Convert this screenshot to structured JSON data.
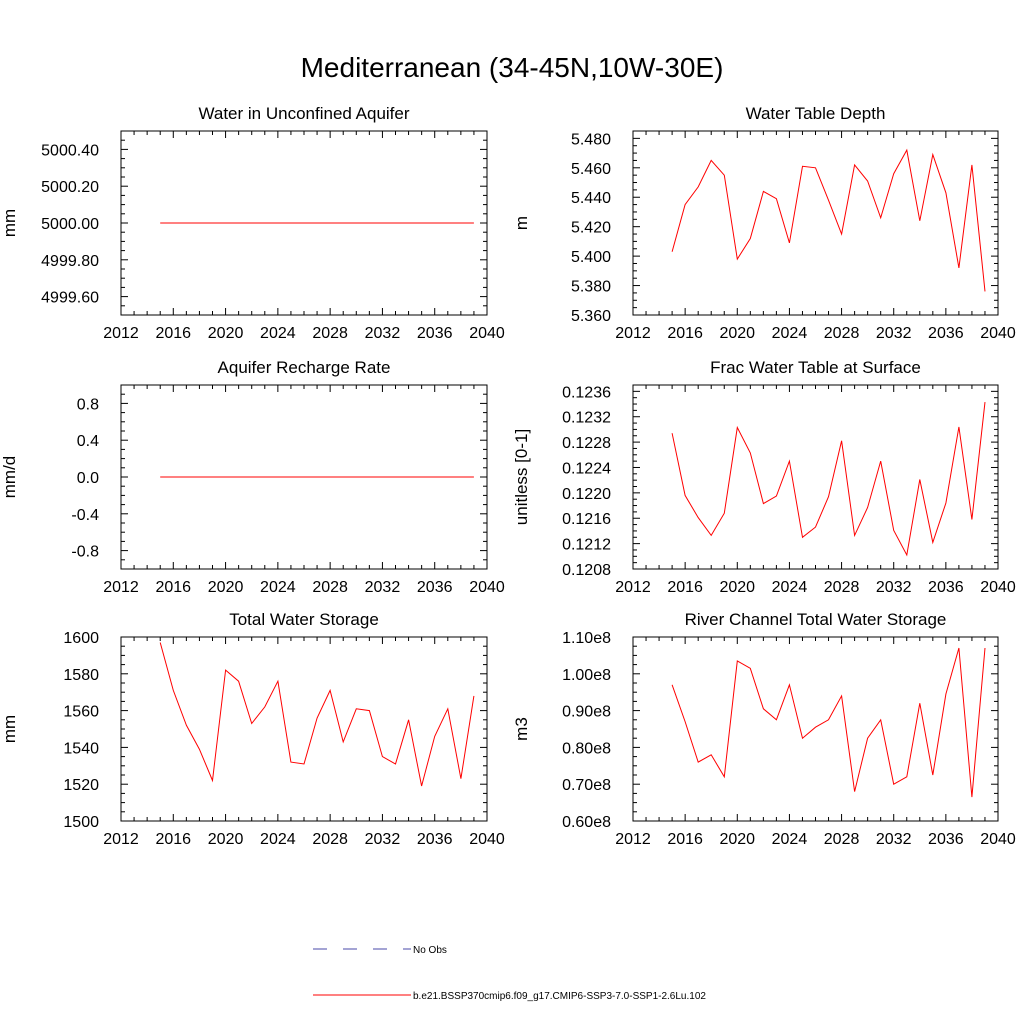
{
  "page": {
    "title": "Mediterranean (34-45N,10W-30E)"
  },
  "colors": {
    "model_line": "#ff0000",
    "obs_line": "#4a4aa8",
    "axis": "#000000"
  },
  "legend": {
    "entries": [
      {
        "label": "No Obs",
        "style": "dashed",
        "color": "#4a4aa8"
      },
      {
        "label": "b.e21.BSSP370cmip6.f09_g17.CMIP6-SSP3-7.0-SSP1-2.6Lu.102",
        "style": "solid",
        "color": "#ff0000"
      }
    ]
  },
  "chart_data": [
    {
      "type": "line",
      "title": "Water in Unconfined Aquifer",
      "xlabel": "",
      "ylabel": "mm",
      "xlim": [
        2012,
        2040
      ],
      "ylim": [
        4999.5,
        5000.5
      ],
      "xticks": [
        2012,
        2016,
        2020,
        2024,
        2028,
        2032,
        2036,
        2040
      ],
      "yticks": [
        4999.6,
        4999.8,
        5000.0,
        5000.2,
        5000.4
      ],
      "ytick_labels": [
        "4999.60",
        "4999.80",
        "5000.00",
        "5000.20",
        "5000.40"
      ],
      "series": [
        {
          "x": [
            2015,
            2016,
            2017,
            2018,
            2019,
            2020,
            2021,
            2022,
            2023,
            2024,
            2025,
            2026,
            2027,
            2028,
            2029,
            2030,
            2031,
            2032,
            2033,
            2034,
            2035,
            2036,
            2037,
            2038,
            2039
          ],
          "values": [
            5000,
            5000,
            5000,
            5000,
            5000,
            5000,
            5000,
            5000,
            5000,
            5000,
            5000,
            5000,
            5000,
            5000,
            5000,
            5000,
            5000,
            5000,
            5000,
            5000,
            5000,
            5000,
            5000,
            5000,
            5000
          ]
        }
      ]
    },
    {
      "type": "line",
      "title": "Water Table Depth",
      "xlabel": "",
      "ylabel": "m",
      "xlim": [
        2012,
        2040
      ],
      "ylim": [
        5.36,
        5.485
      ],
      "xticks": [
        2012,
        2016,
        2020,
        2024,
        2028,
        2032,
        2036,
        2040
      ],
      "yticks": [
        5.36,
        5.38,
        5.4,
        5.42,
        5.44,
        5.46,
        5.48
      ],
      "ytick_labels": [
        "5.360",
        "5.380",
        "5.400",
        "5.420",
        "5.440",
        "5.460",
        "5.480"
      ],
      "series": [
        {
          "x": [
            2015,
            2016,
            2017,
            2018,
            2019,
            2020,
            2021,
            2022,
            2023,
            2024,
            2025,
            2026,
            2027,
            2028,
            2029,
            2030,
            2031,
            2032,
            2033,
            2034,
            2035,
            2036,
            2037,
            2038,
            2039
          ],
          "values": [
            5.403,
            5.435,
            5.447,
            5.465,
            5.455,
            5.398,
            5.412,
            5.444,
            5.439,
            5.409,
            5.461,
            5.46,
            5.438,
            5.415,
            5.462,
            5.451,
            5.426,
            5.456,
            5.472,
            5.424,
            5.469,
            5.443,
            5.392,
            5.462,
            5.376
          ]
        }
      ]
    },
    {
      "type": "line",
      "title": "Aquifer Recharge Rate",
      "xlabel": "",
      "ylabel": "mm/d",
      "xlim": [
        2012,
        2040
      ],
      "ylim": [
        -1.0,
        1.0
      ],
      "xticks": [
        2012,
        2016,
        2020,
        2024,
        2028,
        2032,
        2036,
        2040
      ],
      "yticks": [
        -0.8,
        -0.4,
        0.0,
        0.4,
        0.8
      ],
      "ytick_labels": [
        "-0.8",
        "-0.4",
        "0.0",
        "0.4",
        "0.8"
      ],
      "series": [
        {
          "x": [
            2015,
            2016,
            2017,
            2018,
            2019,
            2020,
            2021,
            2022,
            2023,
            2024,
            2025,
            2026,
            2027,
            2028,
            2029,
            2030,
            2031,
            2032,
            2033,
            2034,
            2035,
            2036,
            2037,
            2038,
            2039
          ],
          "values": [
            0,
            0,
            0,
            0,
            0,
            0,
            0,
            0,
            0,
            0,
            0,
            0,
            0,
            0,
            0,
            0,
            0,
            0,
            0,
            0,
            0,
            0,
            0,
            0,
            0
          ]
        }
      ]
    },
    {
      "type": "line",
      "title": "Frac Water Table at Surface",
      "xlabel": "",
      "ylabel": "unitless [0-1]",
      "xlim": [
        2012,
        2040
      ],
      "ylim": [
        0.1208,
        0.1237
      ],
      "xticks": [
        2012,
        2016,
        2020,
        2024,
        2028,
        2032,
        2036,
        2040
      ],
      "yticks": [
        0.1208,
        0.1212,
        0.1216,
        0.122,
        0.1224,
        0.1228,
        0.1232,
        0.1236
      ],
      "ytick_labels": [
        "0.1208",
        "0.1212",
        "0.1216",
        "0.1220",
        "0.1224",
        "0.1228",
        "0.1232",
        "0.1236"
      ],
      "series": [
        {
          "x": [
            2015,
            2016,
            2017,
            2018,
            2019,
            2020,
            2021,
            2022,
            2023,
            2024,
            2025,
            2026,
            2027,
            2028,
            2029,
            2030,
            2031,
            2032,
            2033,
            2034,
            2035,
            2036,
            2037,
            2038,
            2039
          ],
          "values": [
            0.12294,
            0.12196,
            0.12161,
            0.12133,
            0.12168,
            0.12303,
            0.12263,
            0.12183,
            0.12195,
            0.1225,
            0.1213,
            0.12146,
            0.12194,
            0.12282,
            0.12133,
            0.12177,
            0.1225,
            0.12141,
            0.12102,
            0.12221,
            0.12122,
            0.12184,
            0.12304,
            0.12158,
            0.12343
          ]
        }
      ]
    },
    {
      "type": "line",
      "title": "Total Water Storage",
      "xlabel": "",
      "ylabel": "mm",
      "xlim": [
        2012,
        2040
      ],
      "ylim": [
        1500,
        1600
      ],
      "xticks": [
        2012,
        2016,
        2020,
        2024,
        2028,
        2032,
        2036,
        2040
      ],
      "yticks": [
        1500,
        1520,
        1540,
        1560,
        1580,
        1600
      ],
      "ytick_labels": [
        "1500",
        "1520",
        "1540",
        "1560",
        "1580",
        "1600"
      ],
      "series": [
        {
          "x": [
            2015,
            2016,
            2017,
            2018,
            2019,
            2020,
            2021,
            2022,
            2023,
            2024,
            2025,
            2026,
            2027,
            2028,
            2029,
            2030,
            2031,
            2032,
            2033,
            2034,
            2035,
            2036,
            2037,
            2038,
            2039
          ],
          "values": [
            1597,
            1571,
            1552,
            1539,
            1522,
            1582,
            1576,
            1553,
            1562,
            1576,
            1532,
            1531,
            1556,
            1571,
            1543,
            1561,
            1560,
            1535,
            1531,
            1555,
            1519,
            1546,
            1561,
            1523,
            1568
          ]
        }
      ]
    },
    {
      "type": "line",
      "title": "River Channel Total Water Storage",
      "xlabel": "",
      "ylabel": "m3",
      "xlim": [
        2012,
        2040
      ],
      "ylim": [
        60000000.0,
        110000000.0
      ],
      "xticks": [
        2012,
        2016,
        2020,
        2024,
        2028,
        2032,
        2036,
        2040
      ],
      "yticks": [
        60000000.0,
        70000000.0,
        80000000.0,
        90000000.0,
        100000000.0,
        110000000.0
      ],
      "ytick_labels": [
        "0.60e8",
        "0.70e8",
        "0.80e8",
        "0.90e8",
        "1.00e8",
        "1.10e8"
      ],
      "series": [
        {
          "x": [
            2015,
            2016,
            2017,
            2018,
            2019,
            2020,
            2021,
            2022,
            2023,
            2024,
            2025,
            2026,
            2027,
            2028,
            2029,
            2030,
            2031,
            2032,
            2033,
            2034,
            2035,
            2036,
            2037,
            2038,
            2039
          ],
          "values": [
            97000000.0,
            87000000.0,
            76000000.0,
            78000000.0,
            72000000.0,
            103500000.0,
            101500000.0,
            90500000.0,
            87500000.0,
            97000000.0,
            82500000.0,
            85500000.0,
            87500000.0,
            94000000.0,
            68000000.0,
            82500000.0,
            87500000.0,
            70000000.0,
            72000000.0,
            92000000.0,
            72500000.0,
            94500000.0,
            107000000.0,
            66500000.0,
            107000000.0
          ]
        }
      ]
    }
  ]
}
